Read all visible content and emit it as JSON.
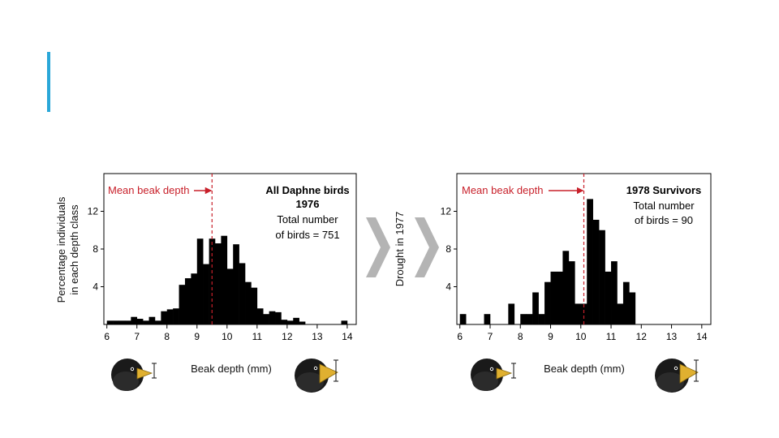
{
  "slide": {
    "accent_color": "#2aa7d8"
  },
  "shared": {
    "ylabel_line1": "Percentage individuals",
    "ylabel_line2": "in each depth class",
    "mean_label": "Mean beak depth",
    "mean_color": "#c8202a",
    "drought_label": "Drought in 1977",
    "arrow_color": "#b4b4b4"
  },
  "chart_data": [
    {
      "type": "bar",
      "title_line1": "All Daphne birds",
      "title_line2": "1976",
      "note_line1": "Total number",
      "note_line2": "of birds = 751",
      "xlabel": "Beak depth (mm)",
      "ylabel": "Percentage individuals in each depth class",
      "xlim": [
        5.9,
        14.3
      ],
      "ylim": [
        0,
        16
      ],
      "xticks": [
        6,
        7,
        8,
        9,
        10,
        11,
        12,
        13,
        14
      ],
      "yticks": [
        4,
        8,
        12
      ],
      "mean": 9.5,
      "bin_width": 0.2,
      "bins": [
        {
          "x": 6.0,
          "y": 0.4
        },
        {
          "x": 6.2,
          "y": 0.4
        },
        {
          "x": 6.4,
          "y": 0.4
        },
        {
          "x": 6.6,
          "y": 0.4
        },
        {
          "x": 6.8,
          "y": 0.8
        },
        {
          "x": 7.0,
          "y": 0.6
        },
        {
          "x": 7.2,
          "y": 0.4
        },
        {
          "x": 7.4,
          "y": 0.8
        },
        {
          "x": 7.6,
          "y": 0.4
        },
        {
          "x": 7.8,
          "y": 1.4
        },
        {
          "x": 8.0,
          "y": 1.6
        },
        {
          "x": 8.2,
          "y": 1.7
        },
        {
          "x": 8.4,
          "y": 4.2
        },
        {
          "x": 8.6,
          "y": 4.9
        },
        {
          "x": 8.8,
          "y": 5.4
        },
        {
          "x": 9.0,
          "y": 9.1
        },
        {
          "x": 9.2,
          "y": 6.4
        },
        {
          "x": 9.4,
          "y": 9.1
        },
        {
          "x": 9.6,
          "y": 8.6
        },
        {
          "x": 9.8,
          "y": 9.4
        },
        {
          "x": 10.0,
          "y": 5.9
        },
        {
          "x": 10.2,
          "y": 8.5
        },
        {
          "x": 10.4,
          "y": 6.5
        },
        {
          "x": 10.6,
          "y": 4.5
        },
        {
          "x": 10.8,
          "y": 3.9
        },
        {
          "x": 11.0,
          "y": 1.7
        },
        {
          "x": 11.2,
          "y": 1.1
        },
        {
          "x": 11.4,
          "y": 1.4
        },
        {
          "x": 11.6,
          "y": 1.3
        },
        {
          "x": 11.8,
          "y": 0.5
        },
        {
          "x": 12.0,
          "y": 0.4
        },
        {
          "x": 12.2,
          "y": 0.7
        },
        {
          "x": 12.4,
          "y": 0.3
        },
        {
          "x": 13.8,
          "y": 0.4
        }
      ]
    },
    {
      "type": "bar",
      "title_line1": "1978 Survivors",
      "title_line2": "",
      "note_line1": "Total number",
      "note_line2": "of birds = 90",
      "xlabel": "Beak depth (mm)",
      "ylabel": "",
      "xlim": [
        5.9,
        14.3
      ],
      "ylim": [
        0,
        16
      ],
      "xticks": [
        6,
        7,
        8,
        9,
        10,
        11,
        12,
        13,
        14
      ],
      "yticks": [
        4,
        8,
        12
      ],
      "mean": 10.1,
      "bin_width": 0.2,
      "bins": [
        {
          "x": 6.0,
          "y": 1.1
        },
        {
          "x": 6.8,
          "y": 1.1
        },
        {
          "x": 7.6,
          "y": 2.2
        },
        {
          "x": 8.0,
          "y": 1.1
        },
        {
          "x": 8.2,
          "y": 1.1
        },
        {
          "x": 8.4,
          "y": 3.4
        },
        {
          "x": 8.6,
          "y": 1.1
        },
        {
          "x": 8.8,
          "y": 4.5
        },
        {
          "x": 9.0,
          "y": 5.6
        },
        {
          "x": 9.2,
          "y": 5.6
        },
        {
          "x": 9.4,
          "y": 7.8
        },
        {
          "x": 9.6,
          "y": 6.7
        },
        {
          "x": 9.8,
          "y": 2.2
        },
        {
          "x": 10.0,
          "y": 2.2
        },
        {
          "x": 10.2,
          "y": 13.3
        },
        {
          "x": 10.4,
          "y": 11.1
        },
        {
          "x": 10.6,
          "y": 10.0
        },
        {
          "x": 10.8,
          "y": 5.6
        },
        {
          "x": 11.0,
          "y": 6.7
        },
        {
          "x": 11.2,
          "y": 2.2
        },
        {
          "x": 11.4,
          "y": 4.5
        },
        {
          "x": 11.6,
          "y": 3.4
        }
      ]
    }
  ]
}
